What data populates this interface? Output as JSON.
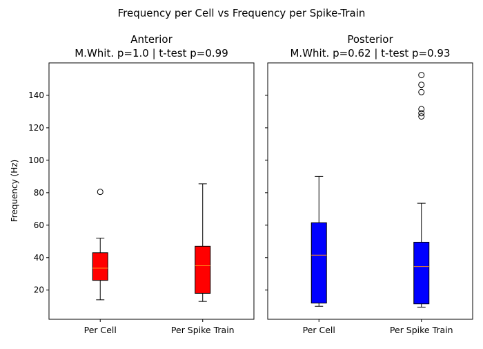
{
  "figure": {
    "suptitle": "Frequency per Cell vs Frequency per Spike-Train",
    "ylabel": "Frequency (Hz)"
  },
  "chart_data": [
    {
      "type": "box",
      "title": "Anterior",
      "subtitle": "M.Whit. p=1.0  |  t-test p=0.99",
      "xlabel": "",
      "ylabel": "Frequency (Hz)",
      "ylim": [
        2,
        160
      ],
      "yticks": [
        20,
        40,
        60,
        80,
        100,
        120,
        140
      ],
      "color": "#ff0000",
      "categories": [
        "Per Cell",
        "Per Spike Train"
      ],
      "boxes": [
        {
          "whisker_low": 14,
          "q1": 26,
          "median": 33.5,
          "q3": 43,
          "whisker_high": 52,
          "outliers": [
            80.5
          ]
        },
        {
          "whisker_low": 13,
          "q1": 18,
          "median": 35,
          "q3": 47,
          "whisker_high": 85.5,
          "outliers": []
        }
      ]
    },
    {
      "type": "box",
      "title": "Posterior",
      "subtitle": "M.Whit. p=0.62  |  t-test p=0.93",
      "xlabel": "",
      "ylabel": "",
      "ylim": [
        2,
        160
      ],
      "yticks": [
        20,
        40,
        60,
        80,
        100,
        120,
        140
      ],
      "color": "#0000ff",
      "categories": [
        "Per Cell",
        "Per Spike Train"
      ],
      "boxes": [
        {
          "whisker_low": 10,
          "q1": 12,
          "median": 41.5,
          "q3": 61.5,
          "whisker_high": 90,
          "outliers": []
        },
        {
          "whisker_low": 9.5,
          "q1": 11.5,
          "median": 34.5,
          "q3": 49.5,
          "whisker_high": 73.5,
          "outliers": [
            127,
            129,
            131.5,
            142,
            146.5,
            152.5
          ]
        }
      ]
    }
  ]
}
